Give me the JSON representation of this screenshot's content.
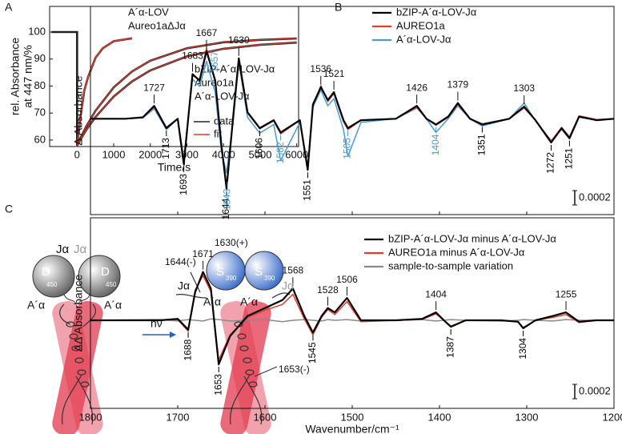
{
  "panel_labels": [
    "A",
    "B",
    "C"
  ],
  "chart_data": [
    {
      "type": "line",
      "xlabel": "Time/s",
      "ylabel": [
        "rel. Absorbance",
        "at 447 nm/%"
      ],
      "xlim": [
        -750,
        6050
      ],
      "xticks": [
        0,
        1000,
        2000,
        3000,
        4000,
        5000,
        6000
      ],
      "ylim": [
        57.6,
        109.5
      ],
      "yticks": [
        60,
        70,
        80,
        90,
        100
      ],
      "annotations": [
        "A´α-LOV",
        "Aureo1aΔJα",
        "bZIP-A´α-LOV-Jα",
        "Aureo1a",
        "A´α-LOV-Jα"
      ],
      "legend": [
        {
          "name": "data",
          "color": "#222222"
        },
        {
          "name": "fit",
          "color": "#e03c31"
        }
      ],
      "series": [
        {
          "color": "#222222",
          "width": 2.6,
          "x": [
            -700,
            -500,
            -250,
            -1,
            0,
            100,
            200,
            300,
            500,
            700,
            1000,
            1500
          ],
          "values": [
            100,
            100,
            100,
            100,
            58,
            69.3,
            78.5,
            83.3,
            90.4,
            94,
            96.6,
            97.7
          ]
        },
        {
          "color": "#e03c31",
          "width": 1.6,
          "x": [
            0,
            100,
            200,
            300,
            500,
            700,
            1000,
            1500
          ],
          "values": [
            58,
            69.3,
            78.5,
            83.3,
            90.4,
            94,
            96.6,
            97.7
          ]
        },
        {
          "color": "#222222",
          "width": 2.6,
          "x": [
            0,
            100,
            250,
            500,
            1000,
            1500,
            2000,
            3000,
            4000,
            5000,
            6000
          ],
          "values": [
            58,
            61,
            65,
            70.8,
            79.5,
            85.4,
            89.4,
            94,
            96.2,
            97.1,
            97.6
          ]
        },
        {
          "color": "#e03c31",
          "width": 1.2,
          "x": [
            0,
            100,
            250,
            500,
            1000,
            1500,
            2000,
            3000,
            4000,
            5000,
            6000
          ],
          "values": [
            58,
            61,
            65,
            70.8,
            79.5,
            85.4,
            89.4,
            94,
            96.2,
            97.1,
            97.6
          ]
        },
        {
          "color": "#222222",
          "width": 2.6,
          "x": [
            0,
            100,
            250,
            500,
            1000,
            1500,
            2000,
            3000,
            4000,
            5000,
            6000
          ],
          "values": [
            58,
            60.4,
            63.7,
            68.5,
            76.1,
            81.7,
            85.8,
            91,
            93.8,
            95.3,
            96.1
          ]
        },
        {
          "color": "#e03c31",
          "width": 1.2,
          "x": [
            0,
            100,
            250,
            500,
            1000,
            1500,
            2000,
            3000,
            4000,
            5000,
            6000
          ],
          "values": [
            58,
            60.4,
            63.7,
            68.5,
            76.1,
            81.7,
            85.8,
            91,
            93.8,
            95.3,
            96.1
          ]
        }
      ]
    },
    {
      "type": "spectrum",
      "ylabel": "Δ Absorbance",
      "xlim": [
        1800,
        1200
      ],
      "ylim": [
        -0.00133,
        0.00156
      ],
      "scalebar": 0.0002,
      "x": [
        1800,
        1760,
        1740,
        1727,
        1713,
        1700,
        1693,
        1683,
        1675,
        1667,
        1657,
        1650,
        1644,
        1636,
        1630,
        1620,
        1606,
        1590,
        1582,
        1560,
        1551,
        1545,
        1536,
        1528,
        1521,
        1510,
        1505,
        1490,
        1450,
        1426,
        1415,
        1404,
        1390,
        1379,
        1365,
        1351,
        1320,
        1303,
        1290,
        1272,
        1260,
        1251,
        1240,
        1220,
        1200
      ],
      "series": [
        {
          "name": "bZIP-A´α-LOV-Jα",
          "color": "#000000",
          "width": 2.2,
          "values": [
            0,
            0,
            2e-05,
            0.00018,
            -0.00013,
            0,
            -0.00063,
            0.00062,
            0.00053,
            0.00094,
            0.00053,
            -0.00036,
            -0.00097,
            9e-05,
            0.00084,
            9e-05,
            -0.00013,
            -2e-05,
            -0.00019,
            -2e-05,
            -0.00071,
            0.0002,
            0.00044,
            0.00026,
            0.00037,
            -2e-05,
            -0.00013,
            -2e-05,
            0,
            0.00018,
            0,
            -8e-05,
            3e-05,
            0.00022,
            0,
            -8e-05,
            0,
            0.00017,
            -2e-05,
            -0.00033,
            -0.00013,
            -0.00027,
            3e-05,
            -2e-05,
            0
          ]
        },
        {
          "name": "AUREO1a",
          "color": "#e03c31",
          "width": 1.5,
          "values": [
            0,
            0,
            2e-05,
            0.00016,
            -0.00012,
            0,
            -0.00058,
            0.0006,
            0.00055,
            0.00098,
            0.0005,
            -0.00034,
            -0.00092,
            8e-05,
            0.0008,
            8e-05,
            -0.00014,
            -3e-05,
            -0.00021,
            -2e-05,
            -0.00068,
            0.00018,
            0.00046,
            0.00024,
            0.00035,
            -4e-05,
            -0.00015,
            -2e-05,
            0,
            0.00016,
            0,
            -9e-05,
            2e-05,
            0.0002,
            0,
            -7e-05,
            0,
            0.00015,
            -2e-05,
            -0.00031,
            -0.00012,
            -0.00025,
            4e-05,
            -1e-05,
            0
          ]
        },
        {
          "name": "A´α-LOV-Jα",
          "color": "#4a9ad4",
          "width": 1.5,
          "values": [
            0,
            0,
            1e-05,
            0.00014,
            -0.00015,
            0,
            -0.00055,
            0.00055,
            0.00045,
            0.0008,
            0.00036,
            -0.00045,
            -0.00075,
            2e-05,
            0.00078,
            2e-05,
            -0.0002,
            -8e-05,
            -0.00058,
            -5e-05,
            -0.00066,
            0.00016,
            0.0004,
            0.00018,
            0.00028,
            -0.00015,
            -0.00052,
            -5e-05,
            0,
            0.00015,
            0,
            -0.00019,
            0,
            0.00018,
            0,
            -0.0001,
            0,
            0.00022,
            -3e-05,
            -0.0003,
            -0.00015,
            -0.00028,
            2e-05,
            -2e-05,
            0
          ]
        }
      ],
      "peak_labels": [
        {
          "value": 1727,
          "side": "up",
          "color": "#000000"
        },
        {
          "value": 1683,
          "side": "up",
          "color": "#000000"
        },
        {
          "value": 1667,
          "side": "up",
          "color": "#000000"
        },
        {
          "value": 1657,
          "side": "up",
          "color": "#4a9ad4"
        },
        {
          "value": 1630,
          "side": "up",
          "color": "#000000"
        },
        {
          "value": 1536,
          "side": "up",
          "color": "#000000"
        },
        {
          "value": 1521,
          "side": "up",
          "color": "#000000"
        },
        {
          "value": 1426,
          "side": "up",
          "color": "#000000"
        },
        {
          "value": 1379,
          "side": "up",
          "color": "#000000"
        },
        {
          "value": 1303,
          "side": "up",
          "color": "#000000"
        },
        {
          "value": 1713,
          "side": "down",
          "color": "#000000"
        },
        {
          "value": 1693,
          "side": "down",
          "color": "#000000"
        },
        {
          "value": 1644,
          "side": "down",
          "color": "#000000"
        },
        {
          "value": 1643,
          "side": "down",
          "color": "#4a9ad4"
        },
        {
          "value": 1606,
          "side": "down",
          "color": "#000000"
        },
        {
          "value": 1582,
          "side": "down",
          "color": "#4a9ad4"
        },
        {
          "value": 1551,
          "side": "down",
          "color": "#000000"
        },
        {
          "value": 1505,
          "side": "down",
          "color": "#4a9ad4"
        },
        {
          "value": 1404,
          "side": "down",
          "color": "#4a9ad4"
        },
        {
          "value": 1351,
          "side": "down",
          "color": "#000000"
        },
        {
          "value": 1272,
          "side": "down",
          "color": "#000000"
        },
        {
          "value": 1251,
          "side": "down",
          "color": "#000000"
        }
      ]
    },
    {
      "type": "spectrum",
      "ylabel": "ΔΔ Absorbance",
      "xlabel": "Wavenumber/cm⁻¹",
      "xlim": [
        1800,
        1200
      ],
      "xticks": [
        1800,
        1700,
        1600,
        1500,
        1400,
        1300,
        1200
      ],
      "ylim": [
        -0.00122,
        0.00142
      ],
      "scalebar": 0.0002,
      "x": [
        1800,
        1720,
        1700,
        1688,
        1680,
        1671,
        1662,
        1653,
        1640,
        1620,
        1600,
        1580,
        1568,
        1555,
        1545,
        1535,
        1528,
        1520,
        1506,
        1490,
        1450,
        1420,
        1404,
        1395,
        1387,
        1370,
        1330,
        1310,
        1304,
        1290,
        1270,
        1255,
        1240,
        1220,
        1200
      ],
      "series": [
        {
          "name": "bZIP-A´α-LOV-Jα minus A´α-LOV-Jα",
          "color": "#000000",
          "width": 2.2,
          "values": [
            0,
            0,
            2e-05,
            -0.00013,
            0.00039,
            0.00067,
            0.00044,
            -0.00061,
            -0.00022,
            6e-05,
            0.00017,
            0.00028,
            0.00044,
            6e-05,
            -0.00017,
            6e-05,
            0.00017,
            0.00011,
            0.00031,
            0,
            0,
            2e-05,
            0.00011,
            0,
            -9e-05,
            0,
            0,
            -2e-05,
            -0.00011,
            0,
            6e-05,
            0.00011,
            -2e-05,
            0,
            0
          ]
        },
        {
          "name": "AUREO1a minus A´α-LOV-Jα",
          "color": "#e03c31",
          "width": 1.5,
          "values": [
            0,
            0,
            1e-05,
            -0.00015,
            0.00042,
            0.00062,
            0.0004,
            -0.00055,
            -0.0002,
            4e-05,
            0.00014,
            0.00022,
            0.00036,
            2e-05,
            -0.0002,
            4e-05,
            0.00015,
            8e-05,
            0.00026,
            -2e-05,
            0,
            1e-05,
            9e-05,
            0,
            -8e-05,
            0,
            0,
            -2e-05,
            -0.0001,
            0,
            4e-05,
            8e-05,
            -3e-05,
            0,
            0
          ]
        },
        {
          "name": "sample-to-sample variation",
          "color": "#8a8a8a",
          "width": 1.5,
          "values": [
            0,
            1e-05,
            -1e-05,
            1e-05,
            0,
            -1e-05,
            2e-05,
            1e-05,
            -1e-05,
            0,
            1e-05,
            -2e-05,
            0,
            1e-05,
            0,
            -1e-05,
            1e-05,
            0,
            1e-05,
            -1e-05,
            0,
            1e-05,
            -1e-05,
            0,
            1e-05,
            0,
            -1e-05,
            0,
            1e-05,
            0,
            -1e-05,
            1e-05,
            0,
            0,
            0
          ]
        }
      ],
      "peak_labels": [
        {
          "value": 1671,
          "side": "up",
          "color": "#000000"
        },
        {
          "value": 1568,
          "side": "up",
          "color": "#000000"
        },
        {
          "value": 1528,
          "side": "up",
          "color": "#000000"
        },
        {
          "value": 1506,
          "side": "up",
          "color": "#000000"
        },
        {
          "value": 1404,
          "side": "up",
          "color": "#000000"
        },
        {
          "value": 1255,
          "side": "up",
          "color": "#000000"
        },
        {
          "value": 1688,
          "side": "down",
          "color": "#000000"
        },
        {
          "value": 1653,
          "side": "down",
          "color": "#000000"
        },
        {
          "value": 1545,
          "side": "down",
          "color": "#000000"
        },
        {
          "value": 1387,
          "side": "down",
          "color": "#000000"
        },
        {
          "value": 1304,
          "side": "down",
          "color": "#000000"
        }
      ]
    }
  ],
  "diagram": {
    "labels": [
      "Jα",
      "Jα",
      "D",
      "450",
      "D",
      "450",
      "A´α",
      "A´α",
      "hν",
      "1644(-)",
      "1630(+)",
      "Jα",
      "S",
      "390",
      "S",
      "390",
      "Jα",
      "A´α",
      "A´α",
      "1653(-)"
    ]
  }
}
